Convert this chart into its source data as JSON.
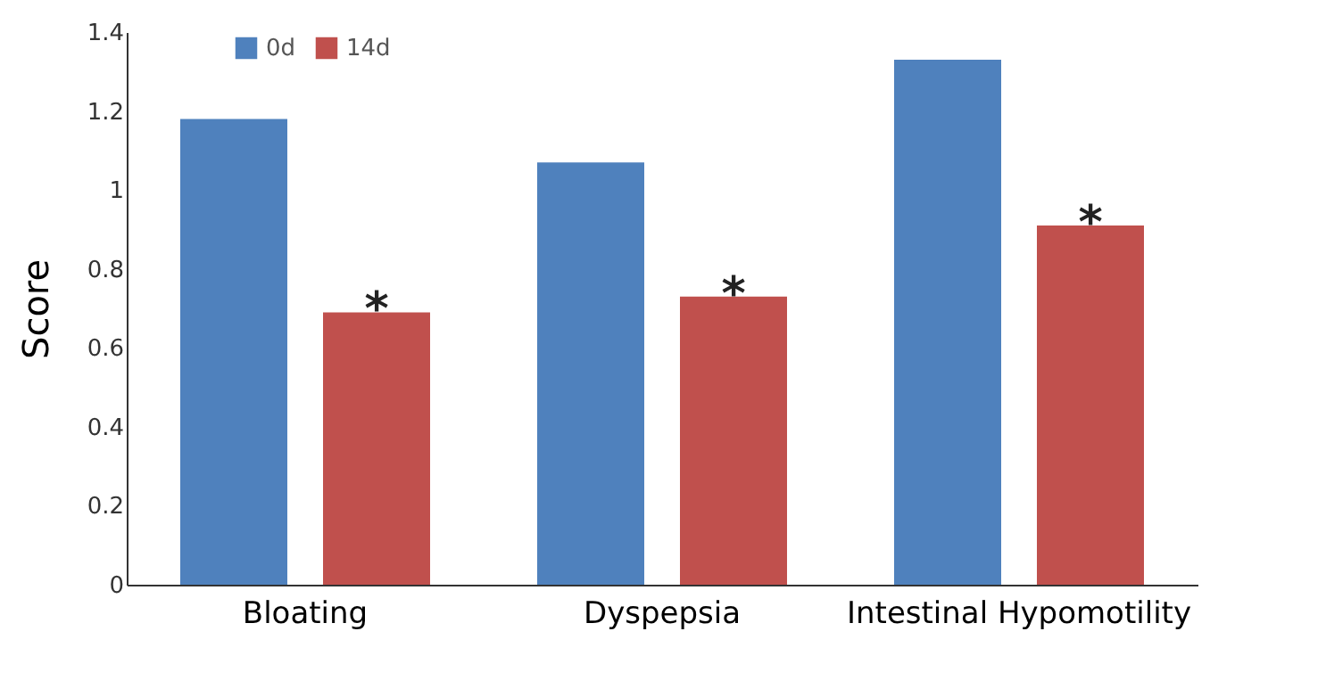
{
  "chart_data": {
    "type": "bar",
    "ylabel": "Score",
    "categories": [
      "Bloating",
      "Dyspepsia",
      "Intestinal Hypomotility"
    ],
    "series": [
      {
        "name": "0d",
        "color": "#4f81bd",
        "values": [
          1.18,
          1.07,
          1.33
        ]
      },
      {
        "name": "14d",
        "color": "#c0504d",
        "values": [
          0.69,
          0.73,
          0.91
        ]
      }
    ],
    "ylim": [
      0,
      1.4
    ],
    "yticks": [
      0,
      0.2,
      0.4,
      0.6,
      0.8,
      1,
      1.2,
      1.4
    ],
    "grid": false,
    "legend": "top left",
    "annotations": [
      "*",
      "*",
      "*"
    ]
  }
}
